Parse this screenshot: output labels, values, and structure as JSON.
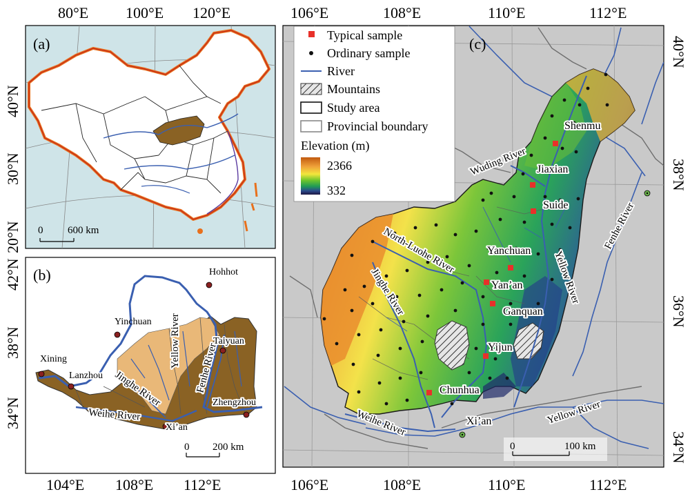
{
  "panel_a": {
    "label": "(a)",
    "lon_ticks": [
      "80°E",
      "100°E",
      "120°E"
    ],
    "lat_ticks": [
      "40°N",
      "30°N",
      "20°N"
    ],
    "scale_label": "600 km",
    "scale_zero": "0"
  },
  "panel_b": {
    "label": "(b)",
    "lon_ticks": [
      "104°E",
      "108°E",
      "112°E"
    ],
    "lat_ticks": [
      "42°N",
      "38°N",
      "34°N"
    ],
    "cities": [
      "Hohhot",
      "Yinchuan",
      "Taiyuan",
      "Xining",
      "Lanzhou",
      "Zhengzhou",
      "Xi’an"
    ],
    "rivers": [
      "Yellow River",
      "Fenhe River",
      "Jinghe River",
      "Weihe River"
    ],
    "scale_label": "200 km",
    "scale_zero": "0"
  },
  "panel_c": {
    "label": "(c)",
    "lon_ticks": [
      "106°E",
      "108°E",
      "110°E",
      "112°E"
    ],
    "lat_ticks": [
      "40°N",
      "38°N",
      "36°N",
      "34°N"
    ],
    "places": [
      "Shenmu",
      "Jiaxian",
      "Suide",
      "Yanchuan",
      "Yan’an",
      "Ganquan",
      "Yijun",
      "Chunhua",
      "Xi’an"
    ],
    "rivers": [
      "Wuding River",
      "North-Luohe River",
      "Jinghe River",
      "Yellow River",
      "Fenhe River",
      "Weihe River",
      "Yellow River"
    ],
    "legend": {
      "typical": "Typical sample",
      "ordinary": "Ordinary sample",
      "river": "River",
      "mountains": "Mountains",
      "study_area": "Study area",
      "provincial": "Provincial boundary",
      "elevation_title": "Elevation (m)",
      "elev_max": "2366",
      "elev_min": "332"
    },
    "scale_label": "100 km",
    "scale_zero": "0"
  },
  "colors": {
    "typical": "#e8302a",
    "river": "#3a5fb0",
    "study_fill_b_dark": "#8a6224",
    "study_fill_b_light": "#e9b878",
    "sea": "#cfe4e8",
    "background_c": "#c9c9c9"
  }
}
